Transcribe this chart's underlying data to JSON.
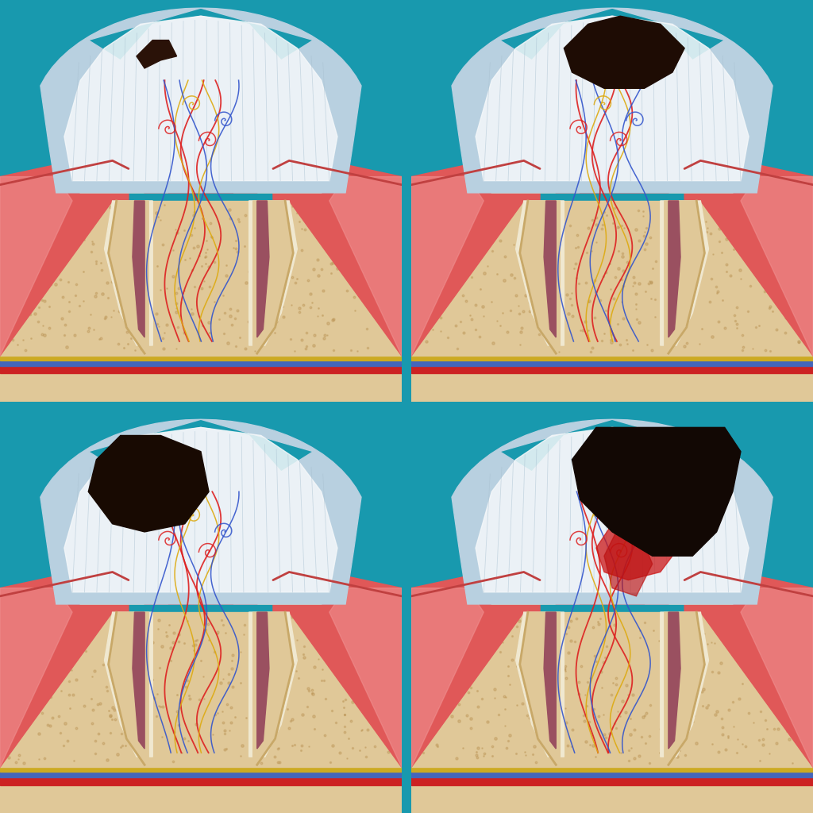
{
  "bg": "#1899ae",
  "panel_bg": "#1899ae",
  "white_border": "#ffffff",
  "colors": {
    "enamel_blue": "#b8d0e0",
    "enamel_white": "#e8f0f5",
    "tooth_white": "#f5f8fa",
    "dentin": "#e8d5b0",
    "dentin_dark": "#d4b87a",
    "bone_tan": "#d4b87a",
    "bone_light": "#e0c898",
    "pulp_mauve": "#9a5060",
    "pulp_dark": "#7a3040",
    "pulp_inner": "#5a2030",
    "root_dentin": "#e0c898",
    "root_outline": "#c8a868",
    "pdl": "#f0e8d0",
    "gum_red": "#e05858",
    "gum_pink": "#f09090",
    "gum_light": "#f8b8b8",
    "nerve_red": "#dd2020",
    "nerve_yellow": "#ddaa10",
    "nerve_blue": "#3355cc",
    "caries1": "#2a1208",
    "caries2": "#1e0c04",
    "caries3": "#180a02",
    "caries4": "#120804",
    "periapical_red": "#cc2020"
  }
}
